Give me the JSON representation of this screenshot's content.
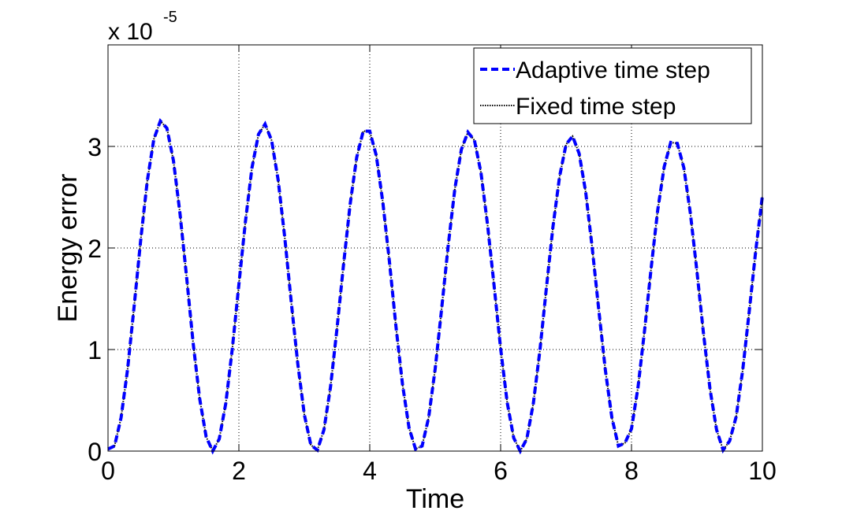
{
  "chart_data": {
    "type": "line",
    "y_multiplier": "x 10",
    "y_multiplier_exponent": "-5",
    "xlabel": "Time",
    "ylabel": "Energy error",
    "xlim": [
      0,
      10
    ],
    "xticks": [
      0,
      2,
      4,
      6,
      8,
      10
    ],
    "ylim": [
      0,
      4
    ],
    "yticks": [
      0,
      1,
      2,
      3
    ],
    "grid": true,
    "legend": "upper right",
    "x": [
      0,
      0.1,
      0.2,
      0.3,
      0.4,
      0.5,
      0.6,
      0.7,
      0.8,
      0.9,
      1,
      1.1,
      1.2,
      1.3,
      1.4,
      1.5,
      1.6,
      1.7,
      1.8,
      1.9,
      2,
      2.1,
      2.2,
      2.3,
      2.4,
      2.5,
      2.6,
      2.7,
      2.8,
      2.9,
      3,
      3.1,
      3.2,
      3.3,
      3.4,
      3.5,
      3.6,
      3.7,
      3.8,
      3.9,
      4,
      4.1,
      4.2,
      4.3,
      4.4,
      4.5,
      4.6,
      4.7,
      4.8,
      4.9,
      5,
      5.1,
      5.2,
      5.3,
      5.4,
      5.5,
      5.6,
      5.7,
      5.8,
      5.9,
      6,
      6.1,
      6.2,
      6.3,
      6.4,
      6.5,
      6.6,
      6.7,
      6.8,
      6.9,
      7,
      7.1,
      7.2,
      7.3,
      7.4,
      7.5,
      7.6,
      7.7,
      7.8,
      7.9,
      8,
      8.1,
      8.2,
      8.3,
      8.4,
      8.5,
      8.6,
      8.7,
      8.8,
      8.9,
      9,
      9.1,
      9.2,
      9.3,
      9.4,
      9.5,
      9.6,
      9.7,
      9.8,
      9.9,
      10
    ],
    "series": [
      {
        "name": "Fixed time step",
        "color": "#000000",
        "style": "dotted",
        "values": [
          0.02,
          0.05,
          0.33,
          0.81,
          1.43,
          2.08,
          2.66,
          3.07,
          3.25,
          3.18,
          2.86,
          2.34,
          1.72,
          1.07,
          0.52,
          0.14,
          0,
          0.12,
          0.47,
          1.01,
          1.64,
          2.26,
          2.79,
          3.12,
          3.22,
          3.06,
          2.67,
          2.11,
          1.47,
          0.86,
          0.36,
          0.06,
          0.01,
          0.21,
          0.63,
          1.21,
          1.84,
          2.43,
          2.89,
          3.15,
          3.15,
          2.91,
          2.45,
          1.87,
          1.23,
          0.66,
          0.23,
          0.02,
          0.05,
          0.33,
          0.81,
          1.41,
          2.03,
          2.58,
          2.97,
          3.14,
          3.06,
          2.74,
          2.23,
          1.63,
          1.01,
          0.48,
          0.13,
          0,
          0.12,
          0.47,
          0.99,
          1.61,
          2.21,
          2.7,
          3.02,
          3.1,
          2.93,
          2.55,
          2,
          1.39,
          0.8,
          0.33,
          0.05,
          0.08,
          0.22,
          0.63,
          1.19,
          1.8,
          2.37,
          2.8,
          3.04,
          3.03,
          2.79,
          2.34,
          1.77,
          1.16,
          0.61,
          0.21,
          0.01,
          0.1,
          0.34,
          0.8,
          1.38,
          1.98,
          2.51
        ]
      },
      {
        "name": "Adaptive time step",
        "color": "#0000ff",
        "style": "dashed",
        "values": [
          0.02,
          0.05,
          0.33,
          0.81,
          1.43,
          2.08,
          2.66,
          3.07,
          3.25,
          3.18,
          2.86,
          2.34,
          1.72,
          1.07,
          0.52,
          0.14,
          0,
          0.12,
          0.47,
          1.01,
          1.64,
          2.26,
          2.79,
          3.12,
          3.22,
          3.06,
          2.67,
          2.11,
          1.47,
          0.86,
          0.36,
          0.06,
          0.01,
          0.21,
          0.63,
          1.21,
          1.84,
          2.43,
          2.89,
          3.15,
          3.15,
          2.91,
          2.45,
          1.87,
          1.23,
          0.66,
          0.23,
          0.02,
          0.05,
          0.33,
          0.81,
          1.41,
          2.03,
          2.58,
          2.97,
          3.14,
          3.06,
          2.74,
          2.23,
          1.63,
          1.01,
          0.48,
          0.13,
          0,
          0.12,
          0.47,
          0.99,
          1.61,
          2.21,
          2.7,
          3.02,
          3.1,
          2.93,
          2.55,
          2,
          1.39,
          0.8,
          0.33,
          0.05,
          0.08,
          0.22,
          0.63,
          1.19,
          1.8,
          2.37,
          2.8,
          3.04,
          3.03,
          2.79,
          2.34,
          1.77,
          1.16,
          0.61,
          0.21,
          0.01,
          0.1,
          0.34,
          0.8,
          1.38,
          1.98,
          2.51
        ]
      }
    ]
  }
}
